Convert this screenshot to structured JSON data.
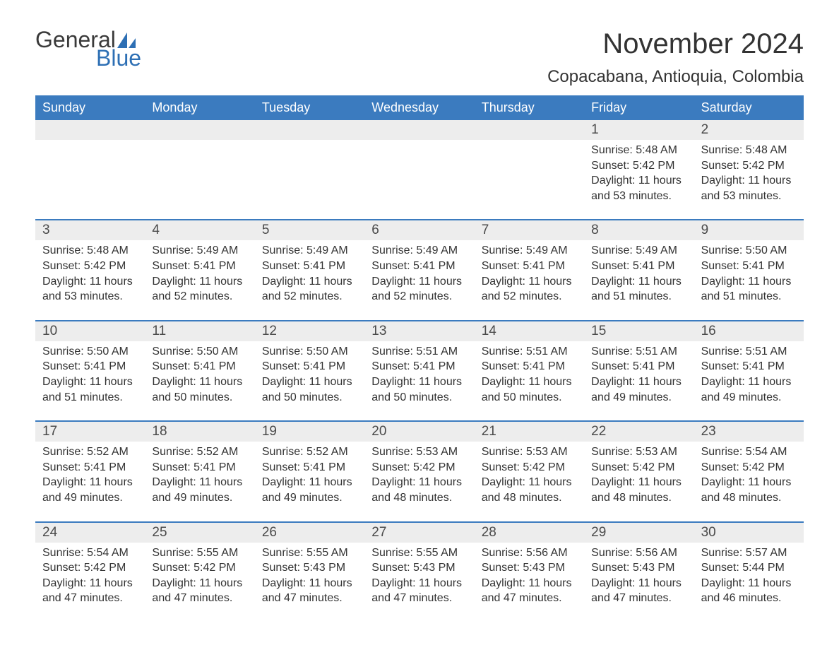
{
  "logo": {
    "text_general": "General",
    "text_blue": "Blue",
    "sail_color": "#2d6fb4"
  },
  "title": "November 2024",
  "location": "Copacabana, Antioquia, Colombia",
  "colors": {
    "header_bg": "#3b7bbf",
    "header_text": "#ffffff",
    "daynum_bg": "#ededed",
    "daynum_text": "#4a4a4a",
    "body_text": "#333333",
    "week_border": "#3b7bbf",
    "page_bg": "#ffffff"
  },
  "typography": {
    "title_fontsize": 40,
    "location_fontsize": 24,
    "dow_fontsize": 18,
    "daynum_fontsize": 19,
    "cell_fontsize": 16,
    "logo_fontsize": 32
  },
  "day_labels": [
    "Sunday",
    "Monday",
    "Tuesday",
    "Wednesday",
    "Thursday",
    "Friday",
    "Saturday"
  ],
  "weeks": [
    [
      null,
      null,
      null,
      null,
      null,
      {
        "n": "1",
        "sunrise": "Sunrise: 5:48 AM",
        "sunset": "Sunset: 5:42 PM",
        "daylight": "Daylight: 11 hours and 53 minutes."
      },
      {
        "n": "2",
        "sunrise": "Sunrise: 5:48 AM",
        "sunset": "Sunset: 5:42 PM",
        "daylight": "Daylight: 11 hours and 53 minutes."
      }
    ],
    [
      {
        "n": "3",
        "sunrise": "Sunrise: 5:48 AM",
        "sunset": "Sunset: 5:42 PM",
        "daylight": "Daylight: 11 hours and 53 minutes."
      },
      {
        "n": "4",
        "sunrise": "Sunrise: 5:49 AM",
        "sunset": "Sunset: 5:41 PM",
        "daylight": "Daylight: 11 hours and 52 minutes."
      },
      {
        "n": "5",
        "sunrise": "Sunrise: 5:49 AM",
        "sunset": "Sunset: 5:41 PM",
        "daylight": "Daylight: 11 hours and 52 minutes."
      },
      {
        "n": "6",
        "sunrise": "Sunrise: 5:49 AM",
        "sunset": "Sunset: 5:41 PM",
        "daylight": "Daylight: 11 hours and 52 minutes."
      },
      {
        "n": "7",
        "sunrise": "Sunrise: 5:49 AM",
        "sunset": "Sunset: 5:41 PM",
        "daylight": "Daylight: 11 hours and 52 minutes."
      },
      {
        "n": "8",
        "sunrise": "Sunrise: 5:49 AM",
        "sunset": "Sunset: 5:41 PM",
        "daylight": "Daylight: 11 hours and 51 minutes."
      },
      {
        "n": "9",
        "sunrise": "Sunrise: 5:50 AM",
        "sunset": "Sunset: 5:41 PM",
        "daylight": "Daylight: 11 hours and 51 minutes."
      }
    ],
    [
      {
        "n": "10",
        "sunrise": "Sunrise: 5:50 AM",
        "sunset": "Sunset: 5:41 PM",
        "daylight": "Daylight: 11 hours and 51 minutes."
      },
      {
        "n": "11",
        "sunrise": "Sunrise: 5:50 AM",
        "sunset": "Sunset: 5:41 PM",
        "daylight": "Daylight: 11 hours and 50 minutes."
      },
      {
        "n": "12",
        "sunrise": "Sunrise: 5:50 AM",
        "sunset": "Sunset: 5:41 PM",
        "daylight": "Daylight: 11 hours and 50 minutes."
      },
      {
        "n": "13",
        "sunrise": "Sunrise: 5:51 AM",
        "sunset": "Sunset: 5:41 PM",
        "daylight": "Daylight: 11 hours and 50 minutes."
      },
      {
        "n": "14",
        "sunrise": "Sunrise: 5:51 AM",
        "sunset": "Sunset: 5:41 PM",
        "daylight": "Daylight: 11 hours and 50 minutes."
      },
      {
        "n": "15",
        "sunrise": "Sunrise: 5:51 AM",
        "sunset": "Sunset: 5:41 PM",
        "daylight": "Daylight: 11 hours and 49 minutes."
      },
      {
        "n": "16",
        "sunrise": "Sunrise: 5:51 AM",
        "sunset": "Sunset: 5:41 PM",
        "daylight": "Daylight: 11 hours and 49 minutes."
      }
    ],
    [
      {
        "n": "17",
        "sunrise": "Sunrise: 5:52 AM",
        "sunset": "Sunset: 5:41 PM",
        "daylight": "Daylight: 11 hours and 49 minutes."
      },
      {
        "n": "18",
        "sunrise": "Sunrise: 5:52 AM",
        "sunset": "Sunset: 5:41 PM",
        "daylight": "Daylight: 11 hours and 49 minutes."
      },
      {
        "n": "19",
        "sunrise": "Sunrise: 5:52 AM",
        "sunset": "Sunset: 5:41 PM",
        "daylight": "Daylight: 11 hours and 49 minutes."
      },
      {
        "n": "20",
        "sunrise": "Sunrise: 5:53 AM",
        "sunset": "Sunset: 5:42 PM",
        "daylight": "Daylight: 11 hours and 48 minutes."
      },
      {
        "n": "21",
        "sunrise": "Sunrise: 5:53 AM",
        "sunset": "Sunset: 5:42 PM",
        "daylight": "Daylight: 11 hours and 48 minutes."
      },
      {
        "n": "22",
        "sunrise": "Sunrise: 5:53 AM",
        "sunset": "Sunset: 5:42 PM",
        "daylight": "Daylight: 11 hours and 48 minutes."
      },
      {
        "n": "23",
        "sunrise": "Sunrise: 5:54 AM",
        "sunset": "Sunset: 5:42 PM",
        "daylight": "Daylight: 11 hours and 48 minutes."
      }
    ],
    [
      {
        "n": "24",
        "sunrise": "Sunrise: 5:54 AM",
        "sunset": "Sunset: 5:42 PM",
        "daylight": "Daylight: 11 hours and 47 minutes."
      },
      {
        "n": "25",
        "sunrise": "Sunrise: 5:55 AM",
        "sunset": "Sunset: 5:42 PM",
        "daylight": "Daylight: 11 hours and 47 minutes."
      },
      {
        "n": "26",
        "sunrise": "Sunrise: 5:55 AM",
        "sunset": "Sunset: 5:43 PM",
        "daylight": "Daylight: 11 hours and 47 minutes."
      },
      {
        "n": "27",
        "sunrise": "Sunrise: 5:55 AM",
        "sunset": "Sunset: 5:43 PM",
        "daylight": "Daylight: 11 hours and 47 minutes."
      },
      {
        "n": "28",
        "sunrise": "Sunrise: 5:56 AM",
        "sunset": "Sunset: 5:43 PM",
        "daylight": "Daylight: 11 hours and 47 minutes."
      },
      {
        "n": "29",
        "sunrise": "Sunrise: 5:56 AM",
        "sunset": "Sunset: 5:43 PM",
        "daylight": "Daylight: 11 hours and 47 minutes."
      },
      {
        "n": "30",
        "sunrise": "Sunrise: 5:57 AM",
        "sunset": "Sunset: 5:44 PM",
        "daylight": "Daylight: 11 hours and 46 minutes."
      }
    ]
  ]
}
